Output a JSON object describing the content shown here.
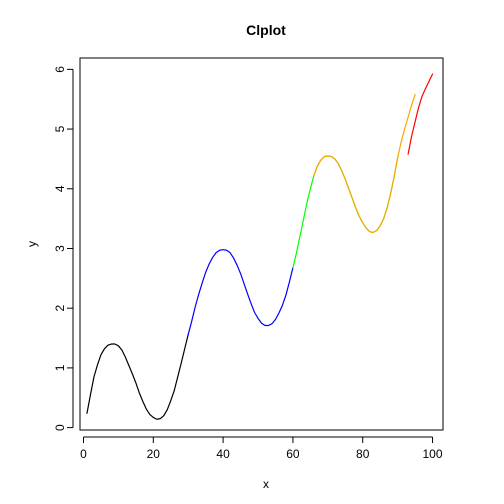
{
  "chart_data": {
    "type": "line",
    "title": "Clplot",
    "xlabel": "x",
    "ylabel": "y",
    "xlim": [
      -1,
      103
    ],
    "ylim": [
      -0.04,
      6.19
    ],
    "x_ticks": [
      0,
      20,
      40,
      60,
      80,
      100
    ],
    "x_tick_labels": [
      "0",
      "20",
      "40",
      "60",
      "80",
      "100"
    ],
    "y_ticks": [
      0,
      1,
      2,
      3,
      4,
      5,
      6
    ],
    "y_tick_labels": [
      "0",
      "1",
      "2",
      "3",
      "4",
      "5",
      "6"
    ],
    "grid": false,
    "legend": "none",
    "series": [
      {
        "color": "#000000",
        "x": [
          1,
          2,
          3,
          4,
          5,
          6,
          7,
          8,
          9,
          10,
          11,
          12,
          13,
          14,
          15,
          16,
          17,
          18,
          19,
          20,
          21,
          22,
          23,
          24,
          25,
          26,
          27,
          28,
          29,
          30
        ],
        "y": [
          0.24,
          0.55,
          0.85,
          1.05,
          1.22,
          1.32,
          1.38,
          1.4,
          1.4,
          1.37,
          1.3,
          1.18,
          1.04,
          0.9,
          0.75,
          0.58,
          0.44,
          0.31,
          0.22,
          0.17,
          0.14,
          0.15,
          0.2,
          0.3,
          0.45,
          0.62,
          0.85,
          1.08,
          1.32,
          1.56
        ]
      },
      {
        "color": "#0000ff",
        "x": [
          30,
          31,
          32,
          33,
          34,
          35,
          36,
          37,
          38,
          39,
          40,
          41,
          42,
          43,
          44,
          45,
          46,
          47,
          48,
          49,
          50,
          51,
          52,
          53,
          54,
          55,
          56,
          57,
          58,
          59,
          60
        ],
        "y": [
          1.56,
          1.78,
          2.02,
          2.23,
          2.42,
          2.6,
          2.74,
          2.85,
          2.93,
          2.97,
          2.98,
          2.97,
          2.93,
          2.84,
          2.72,
          2.58,
          2.41,
          2.24,
          2.08,
          1.93,
          1.83,
          1.75,
          1.71,
          1.71,
          1.74,
          1.81,
          1.92,
          2.05,
          2.22,
          2.44,
          2.68
        ]
      },
      {
        "color": "#00ff00",
        "x": [
          60,
          61,
          62,
          63,
          64,
          65,
          66,
          67,
          68,
          69,
          70,
          71,
          72,
          73,
          74,
          75,
          76,
          77,
          78,
          79,
          80,
          81,
          82,
          83,
          84,
          85,
          86,
          87,
          88,
          89,
          90
        ],
        "y": [
          2.68,
          2.92,
          3.2,
          3.48,
          3.76,
          4.0,
          4.22,
          4.38,
          4.48,
          4.54,
          4.55,
          4.54,
          4.5,
          4.42,
          4.3,
          4.16,
          4.0,
          3.84,
          3.68,
          3.54,
          3.43,
          3.34,
          3.28,
          3.27,
          3.3,
          3.38,
          3.5,
          3.68,
          3.92,
          4.2,
          4.52
        ]
      },
      {
        "color": "#ffa500",
        "x": [
          66,
          67,
          68,
          69,
          70,
          71,
          72,
          73,
          74,
          75,
          76,
          77,
          78,
          79,
          80,
          81,
          82,
          83,
          84,
          85,
          86,
          87,
          88,
          89,
          90,
          91,
          92,
          93,
          94,
          95
        ],
        "y": [
          4.22,
          4.38,
          4.48,
          4.54,
          4.55,
          4.54,
          4.5,
          4.42,
          4.3,
          4.16,
          4.0,
          3.84,
          3.68,
          3.54,
          3.43,
          3.34,
          3.28,
          3.27,
          3.3,
          3.38,
          3.5,
          3.68,
          3.92,
          4.2,
          4.52,
          4.78,
          5.0,
          5.2,
          5.4,
          5.58
        ]
      },
      {
        "color": "#ff0000",
        "x": [
          93,
          94,
          95,
          96,
          97,
          98,
          99,
          100
        ],
        "y": [
          4.58,
          4.88,
          5.12,
          5.36,
          5.55,
          5.68,
          5.8,
          5.92
        ]
      }
    ]
  }
}
